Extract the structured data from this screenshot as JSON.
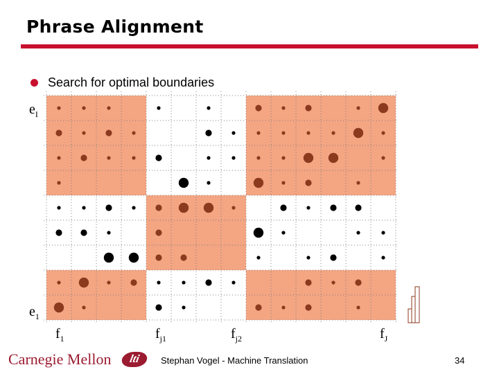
{
  "slide": {
    "title": "Phrase Alignment",
    "bullet": "Search for optimal boundaries",
    "footer": {
      "logo": "Carnegie Mellon",
      "lti_logo": "lti",
      "center": "Stephan Vogel - Machine Translation",
      "page": "34"
    }
  },
  "axes": {
    "y_top": {
      "base": "e",
      "sub": "I"
    },
    "y_bottom": {
      "base": "e",
      "sub": "1"
    },
    "x": [
      {
        "base": "f",
        "sub": "1"
      },
      {
        "base": "f",
        "sub": "j1"
      },
      {
        "base": "f",
        "sub": "j2"
      },
      {
        "base": "f",
        "sub": "J"
      }
    ]
  },
  "colors": {
    "accent": "#c8102e",
    "shade": "#f4a582",
    "shade_dot": "#8b3a1e",
    "plain_dot": "#000000",
    "grid_line": "#808080"
  },
  "matrix": {
    "columns": 14,
    "rows": 9,
    "shaded_blocks": [
      {
        "cols": [
          0,
          3
        ],
        "rows": [
          0,
          3
        ]
      },
      {
        "cols": [
          8,
          13
        ],
        "rows": [
          0,
          3
        ]
      },
      {
        "cols": [
          4,
          7
        ],
        "rows": [
          4,
          6
        ]
      },
      {
        "cols": [
          0,
          3
        ],
        "rows": [
          7,
          8
        ]
      },
      {
        "cols": [
          8,
          13
        ],
        "rows": [
          7,
          8
        ]
      }
    ],
    "cells": [
      [
        1,
        1,
        1,
        0,
        1,
        0,
        1,
        0,
        2,
        1,
        2,
        0,
        1,
        3
      ],
      [
        2,
        1,
        2,
        1,
        0,
        0,
        2,
        1,
        1,
        1,
        1,
        1,
        3,
        1
      ],
      [
        1,
        2,
        1,
        1,
        2,
        0,
        1,
        1,
        1,
        1,
        3,
        3,
        0,
        1
      ],
      [
        1,
        0,
        0,
        0,
        0,
        3,
        1,
        0,
        3,
        1,
        2,
        0,
        1,
        0
      ],
      [
        1,
        1,
        2,
        1,
        2,
        3,
        3,
        1,
        0,
        2,
        1,
        2,
        2,
        0
      ],
      [
        2,
        2,
        1,
        0,
        2,
        0,
        0,
        0,
        3,
        1,
        0,
        0,
        1,
        1
      ],
      [
        0,
        0,
        3,
        3,
        2,
        2,
        0,
        0,
        1,
        0,
        1,
        2,
        0,
        1
      ],
      [
        1,
        3,
        1,
        2,
        1,
        1,
        2,
        1,
        0,
        0,
        2,
        1,
        2,
        0
      ],
      [
        3,
        1,
        0,
        0,
        2,
        1,
        0,
        0,
        2,
        1,
        2,
        0,
        1,
        0
      ]
    ]
  }
}
